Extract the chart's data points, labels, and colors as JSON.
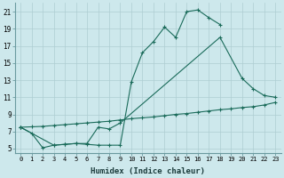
{
  "xlabel": "Humidex (Indice chaleur)",
  "background_color": "#cde8ec",
  "grid_color": "#aecdd2",
  "line_color": "#1a6b5a",
  "xlim": [
    -0.5,
    23.5
  ],
  "ylim": [
    4.5,
    22.0
  ],
  "xticks": [
    0,
    1,
    2,
    3,
    4,
    5,
    6,
    7,
    8,
    9,
    10,
    11,
    12,
    13,
    14,
    15,
    16,
    17,
    18,
    19,
    20,
    21,
    22,
    23
  ],
  "yticks": [
    5,
    7,
    9,
    11,
    13,
    15,
    17,
    19,
    21
  ],
  "line1_x": [
    0,
    1,
    2,
    3,
    4,
    5,
    6,
    7,
    8,
    9,
    10,
    11,
    12,
    13,
    14,
    15,
    16,
    17,
    18
  ],
  "line1_y": [
    7.5,
    6.8,
    5.1,
    5.4,
    5.5,
    5.6,
    5.5,
    5.4,
    5.4,
    5.4,
    12.8,
    16.2,
    17.5,
    19.2,
    18.0,
    21.0,
    21.2,
    20.3,
    19.5
  ],
  "line2_x": [
    0,
    3,
    4,
    5,
    6,
    7,
    8,
    9,
    18,
    20,
    21,
    22,
    23
  ],
  "line2_y": [
    7.5,
    5.4,
    5.5,
    5.6,
    5.6,
    7.5,
    7.3,
    8.0,
    18.0,
    13.2,
    12.0,
    11.2,
    11.0
  ],
  "line3_x": [
    0,
    1,
    2,
    3,
    4,
    5,
    6,
    7,
    8,
    9,
    10,
    11,
    12,
    13,
    14,
    15,
    16,
    17,
    18,
    19,
    20,
    21,
    22,
    23
  ],
  "line3_y": [
    7.5,
    7.55,
    7.6,
    7.7,
    7.8,
    7.9,
    8.0,
    8.1,
    8.2,
    8.35,
    8.5,
    8.6,
    8.7,
    8.85,
    9.0,
    9.1,
    9.25,
    9.4,
    9.55,
    9.65,
    9.8,
    9.9,
    10.1,
    10.4
  ]
}
